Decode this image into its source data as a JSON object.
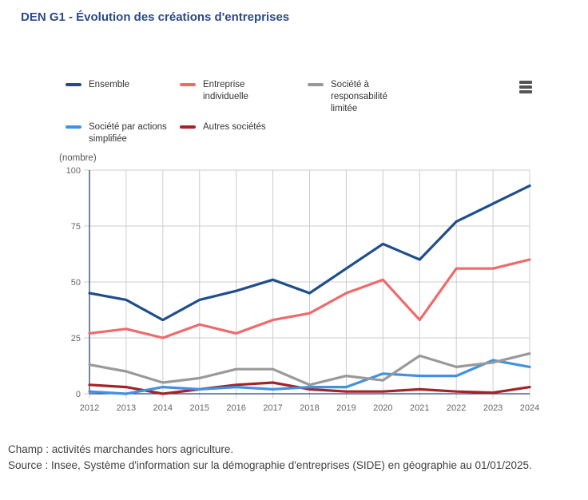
{
  "title": "DEN G1 - Évolution des créations d'entreprises",
  "legend": {
    "items": [
      {
        "label": "Ensemble",
        "color": "#1f4e8c"
      },
      {
        "label": "Entreprise individuelle",
        "color": "#ee6a6b"
      },
      {
        "label": "Société à responsabilité limitée",
        "color": "#999999"
      },
      {
        "label": "Société par actions simplifiée",
        "color": "#4291e1"
      },
      {
        "label": "Autres sociétés",
        "color": "#a3232b"
      }
    ]
  },
  "colors": {
    "title": "#2b4a87",
    "axis_line": "#2d4372",
    "gridline": "#cccccc",
    "axis_label": "#666666",
    "menu_icon": "#555555"
  },
  "chart_data": {
    "type": "line",
    "title": "DEN G1 - Évolution des créations d'entreprises",
    "ylabel": "(nombre)",
    "xlabel": "",
    "ylim": [
      0,
      100
    ],
    "yticks": [
      0,
      25,
      50,
      75,
      100
    ],
    "grid": true,
    "legend_position": "top",
    "x": [
      2012,
      2013,
      2014,
      2015,
      2016,
      2017,
      2018,
      2019,
      2020,
      2021,
      2022,
      2023,
      2024
    ],
    "series": [
      {
        "name": "Ensemble",
        "color": "#1f4e8c",
        "values": [
          45,
          42,
          33,
          42,
          46,
          51,
          45,
          56,
          67,
          60,
          77,
          85,
          93
        ]
      },
      {
        "name": "Entreprise individuelle",
        "color": "#ee6a6b",
        "values": [
          27,
          29,
          25,
          31,
          27,
          33,
          36,
          45,
          51,
          33,
          56,
          56,
          60
        ]
      },
      {
        "name": "Société à responsabilité limitée",
        "color": "#999999",
        "values": [
          13,
          10,
          5,
          7,
          11,
          11,
          4,
          8,
          6,
          17,
          12,
          14,
          18
        ]
      },
      {
        "name": "Société par actions simplifiée",
        "color": "#4291e1",
        "values": [
          1,
          0,
          3,
          2,
          3,
          2,
          3,
          3,
          9,
          8,
          8,
          15,
          12
        ]
      },
      {
        "name": "Autres sociétés",
        "color": "#a3232b",
        "values": [
          4,
          3,
          0,
          2,
          4,
          5,
          2,
          1,
          1,
          2,
          1,
          0.5,
          3
        ]
      }
    ]
  },
  "footer": {
    "champ": "Champ : activités marchandes hors agriculture.",
    "source": "Source : Insee, Système d'information sur la démographie d'entreprises (SIDE) en géographie au 01/01/2025."
  }
}
